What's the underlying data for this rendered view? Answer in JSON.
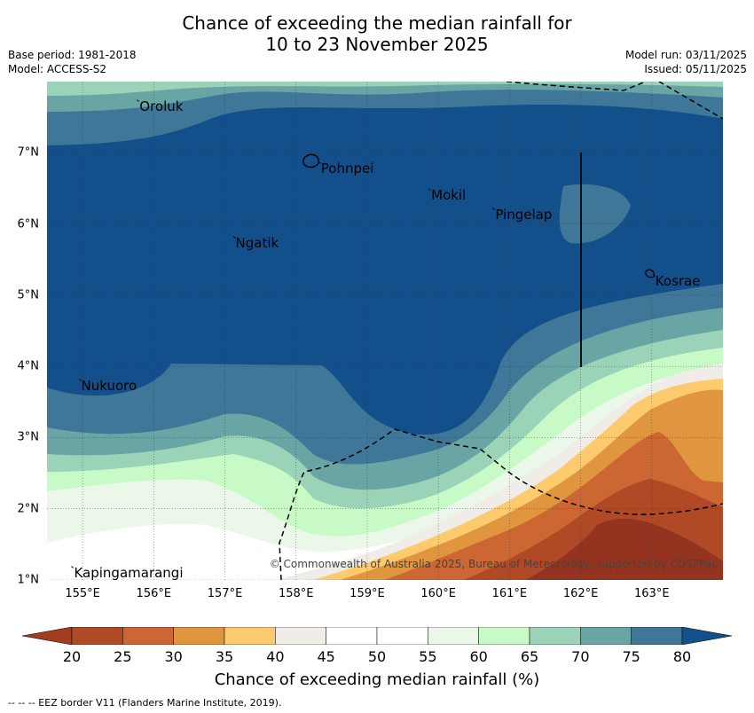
{
  "header": {
    "title_line1": "Chance of exceeding the median rainfall for",
    "title_line2": "10 to 23 November 2025",
    "base_period": "Base period: 1981-2018",
    "model": "Model: ACCESS-S2",
    "model_run": "Model run: 03/11/2025",
    "issued": "Issued: 05/11/2025"
  },
  "map": {
    "lon_range": [
      154.5,
      164.0
    ],
    "lat_range": [
      1.0,
      8.0
    ],
    "places": [
      {
        "name": "Oroluk",
        "lon": 155.8,
        "lat": 7.65
      },
      {
        "name": "Pohnpei",
        "lon": 158.35,
        "lat": 6.78
      },
      {
        "name": "Mokil",
        "lon": 159.9,
        "lat": 6.4
      },
      {
        "name": "Pingelap",
        "lon": 160.8,
        "lat": 6.13
      },
      {
        "name": "Ngatik",
        "lon": 157.15,
        "lat": 5.73
      },
      {
        "name": "Kosrae",
        "lon": 163.05,
        "lat": 5.2
      },
      {
        "name": "Nukuoro",
        "lon": 154.98,
        "lat": 3.73
      },
      {
        "name": "Kapingamarangi",
        "lon": 154.88,
        "lat": 1.1
      }
    ],
    "copyright": "© Commonwealth of Australia 2025, Bureau of Meteorology, supported by COSPPac"
  },
  "axes": {
    "y_ticks": [
      {
        "label": "7°N",
        "lat": 7
      },
      {
        "label": "6°N",
        "lat": 6
      },
      {
        "label": "5°N",
        "lat": 5
      },
      {
        "label": "4°N",
        "lat": 4
      },
      {
        "label": "3°N",
        "lat": 3
      },
      {
        "label": "2°N",
        "lat": 2
      },
      {
        "label": "1°N",
        "lat": 1
      }
    ],
    "x_ticks": [
      {
        "label": "155°E",
        "lon": 155
      },
      {
        "label": "156°E",
        "lon": 156
      },
      {
        "label": "157°E",
        "lon": 157
      },
      {
        "label": "158°E",
        "lon": 158
      },
      {
        "label": "159°E",
        "lon": 159
      },
      {
        "label": "160°E",
        "lon": 160
      },
      {
        "label": "161°E",
        "lon": 161
      },
      {
        "label": "162°E",
        "lon": 162
      },
      {
        "label": "163°E",
        "lon": 163
      }
    ]
  },
  "colorbar": {
    "labels": [
      "20",
      "25",
      "30",
      "35",
      "40",
      "45",
      "50",
      "55",
      "60",
      "65",
      "70",
      "75",
      "80"
    ],
    "low_color": "#a23c20",
    "high_color": "#134f8a",
    "colors": [
      "#b04a26",
      "#cc6633",
      "#e0953f",
      "#fdcb6e",
      "#f0ece8",
      "#ffffff",
      "#ffffff",
      "#eaf7e9",
      "#c8fac8",
      "#9bd3b8",
      "#6aa5a5",
      "#3f7799"
    ],
    "title": "Chance of exceeding median rainfall (%)"
  },
  "footnote": "--  --  -- EEZ border V11 (Flanders Marine Institute, 2019)."
}
